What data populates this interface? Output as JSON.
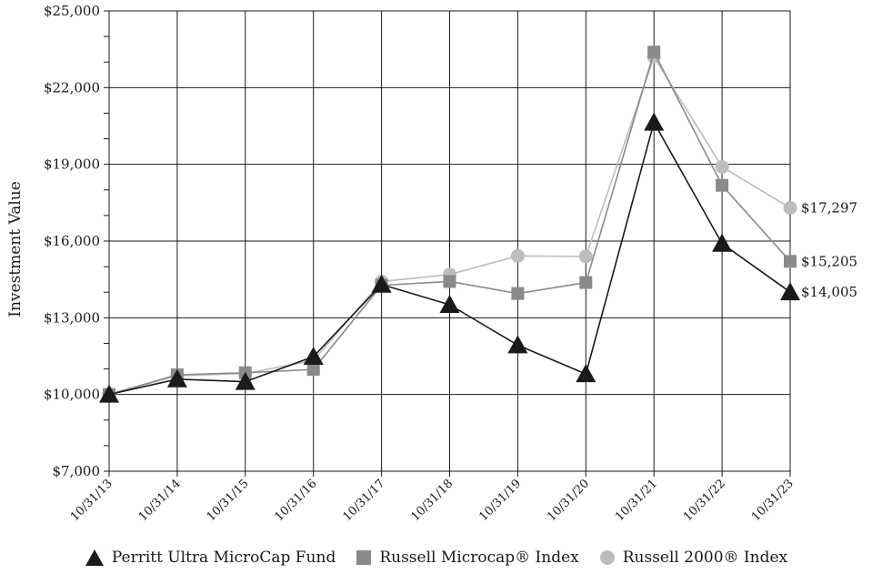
{
  "chart_data": {
    "type": "line",
    "ylabel": "Investment Value",
    "ylim": [
      7000,
      25000
    ],
    "yticks": [
      "$7,000",
      "$10,000",
      "$13,000",
      "$16,000",
      "$19,000",
      "$22,000",
      "$25,000"
    ],
    "ytick_values": [
      7000,
      10000,
      13000,
      16000,
      19000,
      22000,
      25000
    ],
    "categories": [
      "10/31/13",
      "10/31/14",
      "10/31/15",
      "10/31/16",
      "10/31/17",
      "10/31/18",
      "10/31/19",
      "10/31/20",
      "10/31/21",
      "10/31/22",
      "10/31/23"
    ],
    "grid": true,
    "legend_position": "bottom",
    "series": [
      {
        "name": "Russell 2000® Index",
        "marker": "circle",
        "color": "#bdbdbd",
        "values": [
          10000,
          10730,
          10820,
          11330,
          14420,
          14690,
          15420,
          15400,
          23200,
          18900,
          17297
        ],
        "end_label": "$17,297"
      },
      {
        "name": "Russell Microcap® Index",
        "marker": "square",
        "color": "#8a8a8a",
        "values": [
          10000,
          10770,
          10850,
          10980,
          14270,
          14420,
          13950,
          14380,
          23390,
          18180,
          15205
        ],
        "end_label": "$15,205"
      },
      {
        "name": "Perritt Ultra MicroCap Fund",
        "marker": "triangle",
        "color": "#1a1a1a",
        "values": [
          10000,
          10600,
          10500,
          11480,
          14300,
          13510,
          11930,
          10800,
          20640,
          15900,
          14005
        ],
        "end_label": "$14,005"
      }
    ],
    "legend": [
      "Perritt Ultra MicroCap Fund",
      "Russell Microcap® Index",
      "Russell 2000® Index"
    ]
  }
}
